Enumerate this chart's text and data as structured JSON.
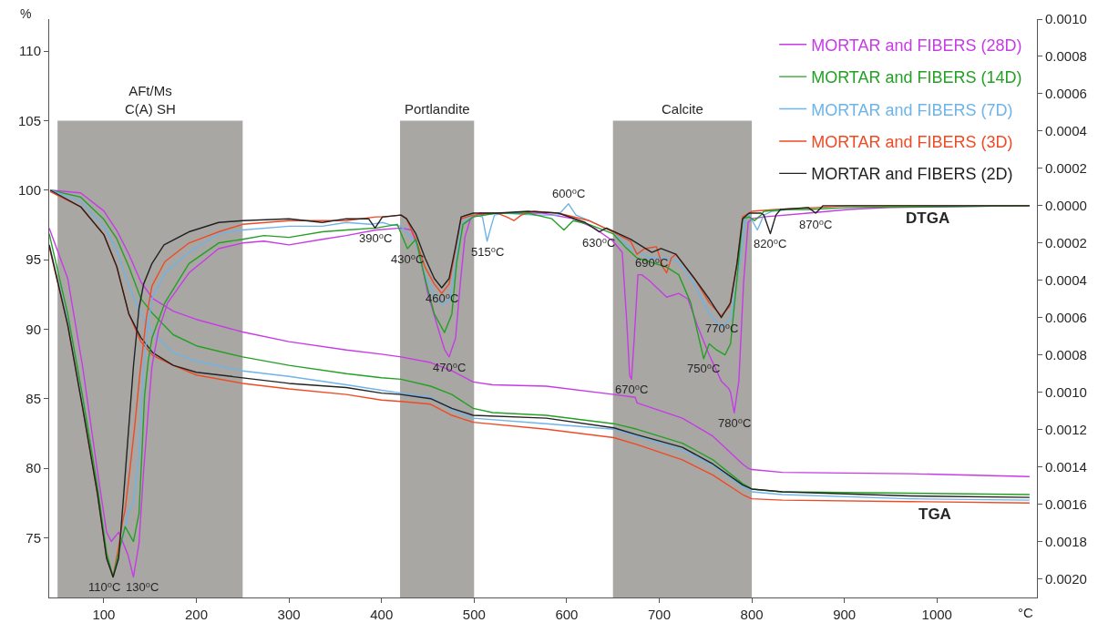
{
  "chart_data": {
    "type": "line",
    "xlabel": "°C",
    "ylabel": "%",
    "legend": "top right",
    "xlim": [
      41,
      1108
    ],
    "xticks": [
      100,
      200,
      300,
      400,
      500,
      600,
      700,
      800,
      900,
      1000
    ],
    "ylim": [
      70.7,
      112.3
    ],
    "yticks": [
      75,
      80,
      85,
      90,
      95,
      100,
      105,
      110
    ],
    "y2lim": [
      -0.0021,
      0.001
    ],
    "y2ticks": [
      {
        "value": 0.001,
        "label": "0.0010"
      },
      {
        "value": 0.0008,
        "label": "0.0008"
      },
      {
        "value": 0.0006,
        "label": "0.0006"
      },
      {
        "value": 0.0004,
        "label": "0.0004"
      },
      {
        "value": 0.0002,
        "label": "0.0002"
      },
      {
        "value": 0,
        "label": "0.0000"
      },
      {
        "value": -0.0002,
        "label": "0.0002"
      },
      {
        "value": -0.0004,
        "label": "0.0004"
      },
      {
        "value": -0.0006,
        "label": "0.0006"
      },
      {
        "value": -0.0008,
        "label": "0.0008"
      },
      {
        "value": -0.001,
        "label": "0.0010"
      },
      {
        "value": -0.0012,
        "label": "0.0012"
      },
      {
        "value": -0.0014,
        "label": "0.0014"
      },
      {
        "value": -0.0016,
        "label": "0.0016"
      },
      {
        "value": -0.0018,
        "label": "0.0018"
      },
      {
        "value": -0.002,
        "label": "0.0020"
      }
    ],
    "bands": [
      {
        "axis": "x",
        "from": 50,
        "to": 250,
        "label": "AFt/Ms\nC(A) SH",
        "color": "#a8a7a3"
      },
      {
        "axis": "x",
        "from": 420,
        "to": 500,
        "label": "Portlandite",
        "color": "#a8a7a3"
      },
      {
        "axis": "x",
        "from": 650,
        "to": 800,
        "label": "Calcite",
        "color": "#a8a7a3"
      }
    ],
    "series": [
      {
        "name": "MORTAR and FIBERS (28D)",
        "color": "#c73be6",
        "x": [
          42,
          75,
          100,
          114,
          127,
          140,
          153,
          175,
          200,
          250,
          300,
          362,
          400,
          421,
          453,
          476,
          499,
          520,
          578,
          651,
          674,
          676,
          725,
          758,
          790,
          796,
          800,
          833,
          970,
          1100
        ],
        "values": [
          100,
          99.8,
          98.5,
          97.1,
          95.4,
          93.4,
          92.2,
          91.3,
          90.7,
          89.8,
          89.1,
          88.5,
          88.2,
          88.0,
          87.6,
          87.0,
          86.2,
          86.0,
          85.9,
          85.3,
          85.1,
          84.7,
          83.6,
          82.3,
          80.3,
          80.0,
          79.9,
          79.7,
          79.6,
          79.4
        ]
      },
      {
        "name": "MORTAR and FIBERS (14D)",
        "color": "#24a024",
        "x": [
          42,
          75,
          100,
          114,
          127,
          140,
          153,
          175,
          200,
          250,
          300,
          362,
          400,
          421,
          453,
          476,
          499,
          520,
          578,
          651,
          676,
          725,
          758,
          790,
          800,
          833,
          970,
          1100
        ],
        "values": [
          100,
          99.5,
          97.9,
          96.5,
          94.5,
          92.2,
          91.1,
          89.6,
          88.8,
          88.0,
          87.4,
          86.8,
          86.5,
          86.4,
          85.9,
          85.3,
          84.3,
          84.0,
          83.8,
          83.2,
          82.8,
          81.8,
          80.6,
          78.9,
          78.5,
          78.3,
          78.2,
          78.1
        ]
      },
      {
        "name": "MORTAR and FIBERS (7D)",
        "color": "#6db4e8",
        "x": [
          42,
          75,
          100,
          114,
          127,
          140,
          153,
          175,
          200,
          250,
          300,
          362,
          400,
          421,
          453,
          476,
          499,
          578,
          651,
          676,
          725,
          758,
          790,
          800,
          833,
          970,
          1100
        ],
        "values": [
          100,
          99.2,
          97.4,
          95.7,
          93.1,
          91.1,
          89.7,
          88.3,
          87.7,
          87.0,
          86.6,
          86.0,
          85.6,
          85.4,
          85.1,
          84.2,
          83.6,
          83.2,
          82.8,
          82.3,
          81.3,
          80.2,
          78.7,
          78.3,
          78.1,
          77.8,
          77.7
        ]
      },
      {
        "name": "MORTAR and FIBERS (3D)",
        "color": "#f04a24",
        "x": [
          42,
          75,
          100,
          114,
          127,
          140,
          153,
          175,
          200,
          250,
          300,
          362,
          400,
          421,
          453,
          476,
          499,
          578,
          651,
          676,
          725,
          758,
          790,
          800,
          833,
          970,
          1100
        ],
        "values": [
          99.9,
          98.8,
          96.8,
          94.5,
          91.1,
          89.1,
          88.1,
          87.4,
          86.7,
          86.1,
          85.7,
          85.3,
          84.9,
          84.8,
          84.6,
          83.8,
          83.3,
          82.8,
          82.2,
          81.7,
          80.6,
          79.5,
          78.1,
          77.8,
          77.7,
          77.6,
          77.5
        ]
      },
      {
        "name": "MORTAR and FIBERS (2D)",
        "color": "#222222",
        "x": [
          42,
          75,
          100,
          114,
          127,
          140,
          153,
          175,
          200,
          250,
          300,
          362,
          400,
          421,
          453,
          476,
          499,
          578,
          651,
          676,
          725,
          758,
          790,
          800,
          833,
          970,
          1100
        ],
        "values": [
          100,
          98.8,
          96.8,
          94.5,
          91.1,
          89.4,
          88.3,
          87.4,
          86.9,
          86.5,
          86.1,
          85.8,
          85.4,
          85.3,
          85.0,
          84.3,
          83.8,
          83.6,
          82.9,
          82.4,
          81.5,
          80.3,
          78.8,
          78.5,
          78.3,
          78.0,
          77.9
        ]
      },
      {
        "color": "#c73be6",
        "axis": "y2",
        "x": [
          41,
          61,
          77,
          93,
          103,
          108,
          116,
          126,
          132,
          138,
          143,
          148,
          152,
          159,
          169,
          192,
          224,
          250,
          273,
          300,
          336,
          362,
          394,
          421,
          432,
          440,
          450,
          460,
          468,
          473,
          480,
          485,
          490,
          496,
          506,
          542,
          574,
          607,
          630,
          650,
          660,
          665,
          668,
          670,
          673,
          677,
          681,
          689,
          708,
          721,
          731,
          741,
          754,
          767,
          775,
          777,
          781,
          786,
          791,
          796,
          800,
          813,
          861,
          904,
          948,
          1100
        ],
        "values": [
          -0.00012,
          -0.00039,
          -0.00086,
          -0.00142,
          -0.00175,
          -0.0018,
          -0.00175,
          -0.00187,
          -0.00199,
          -0.00181,
          -0.00142,
          -0.0011,
          -0.00086,
          -0.00067,
          -0.00052,
          -0.00036,
          -0.00023,
          -0.0002,
          -0.00019,
          -0.00021,
          -0.00018,
          -0.00016,
          -0.00013,
          -0.00012,
          -0.00013,
          -0.00023,
          -0.00047,
          -0.00064,
          -0.00077,
          -0.00081,
          -0.00071,
          -0.00042,
          -0.00017,
          -7e-05,
          -4e-05,
          -4e-05,
          -4e-05,
          -7e-05,
          -0.00012,
          -0.00019,
          -0.00025,
          -0.00063,
          -0.00091,
          -0.00093,
          -0.00071,
          -0.00037,
          -0.00037,
          -0.0004,
          -0.00049,
          -0.00047,
          -0.0005,
          -0.00064,
          -0.0008,
          -0.00094,
          -0.00098,
          -0.001,
          -0.00111,
          -0.00094,
          -0.00042,
          -9e-05,
          -7e-05,
          -6e-05,
          -4e-05,
          -2e-05,
          -1e-05,
          0
        ]
      },
      {
        "color": "#6db4e8",
        "axis": "y2",
        "x": [
          41,
          61,
          77,
          93,
          103,
          110,
          116,
          123,
          126,
          132,
          138,
          143,
          148,
          152,
          166,
          192,
          224,
          250,
          300,
          336,
          362,
          388,
          401,
          408,
          421,
          437,
          447,
          457,
          466,
          474,
          480,
          486,
          499,
          509,
          514,
          519,
          522,
          532,
          565,
          591,
          602,
          610,
          624,
          650,
          669,
          689,
          705,
          721,
          738,
          754,
          767,
          777,
          787,
          793,
          796,
          806,
          813,
          822,
          861
        ],
        "values": [
          -0.00021,
          -0.00062,
          -0.00106,
          -0.00152,
          -0.00188,
          -0.00199,
          -0.00185,
          -0.00173,
          -0.00165,
          -0.00159,
          -0.00134,
          -0.00086,
          -0.00063,
          -0.0005,
          -0.00036,
          -0.00025,
          -0.00015,
          -0.00013,
          -0.00011,
          -0.00011,
          -9e-05,
          -0.0001,
          -9e-05,
          -0.0001,
          -0.00011,
          -0.0002,
          -0.00037,
          -0.00048,
          -0.00053,
          -0.0005,
          -0.00031,
          -0.0001,
          -5e-05,
          -6e-05,
          -0.00019,
          -0.0001,
          -5e-05,
          -4e-05,
          -5e-05,
          -5e-05,
          1e-05,
          -5e-05,
          -8e-05,
          -0.00014,
          -0.00023,
          -0.00028,
          -0.00028,
          -0.0003,
          -0.00042,
          -0.00058,
          -0.00065,
          -0.00061,
          -0.00031,
          -7e-05,
          -4e-05,
          -0.00013,
          -5e-05,
          -3e-05,
          -1e-05
        ]
      },
      {
        "color": "#f04a24",
        "axis": "y2",
        "x": [
          41,
          61,
          77,
          93,
          103,
          110,
          116,
          120,
          123,
          128,
          133,
          139,
          146,
          152,
          166,
          192,
          224,
          250,
          300,
          336,
          362,
          394,
          404,
          421,
          427,
          437,
          447,
          457,
          465,
          473,
          480,
          486,
          499,
          525,
          535,
          543,
          551,
          565,
          591,
          624,
          650,
          669,
          676,
          684,
          697,
          704,
          708,
          713,
          718,
          738,
          754,
          767,
          776,
          784,
          790,
          800,
          826,
          870,
          904,
          1100
        ],
        "values": [
          -0.00022,
          -0.00064,
          -0.00108,
          -0.00154,
          -0.00189,
          -0.00199,
          -0.00183,
          -0.0017,
          -0.00163,
          -0.00142,
          -0.0012,
          -0.0009,
          -0.0006,
          -0.00043,
          -0.0003,
          -0.0002,
          -0.00014,
          -0.0001,
          -8e-05,
          -8e-05,
          -8e-05,
          -6e-05,
          -6e-05,
          -5e-05,
          -7e-05,
          -0.00018,
          -0.00033,
          -0.00042,
          -0.00047,
          -0.00042,
          -0.00023,
          -7e-05,
          -5e-05,
          -4e-05,
          -6e-05,
          -8e-05,
          -5e-05,
          -3e-05,
          -4e-05,
          -8e-05,
          -0.00014,
          -0.00019,
          -0.00026,
          -0.00023,
          -0.00022,
          -0.00033,
          -0.00036,
          -0.00028,
          -0.00026,
          -0.00039,
          -0.00052,
          -0.00059,
          -0.00054,
          -0.00031,
          -6e-05,
          -3e-05,
          -2e-05,
          -1e-05,
          0,
          0
        ]
      },
      {
        "color": "#24a024",
        "axis": "y2",
        "x": [
          41,
          61,
          77,
          93,
          103,
          110,
          116,
          123,
          132,
          138,
          141,
          144,
          148,
          152,
          166,
          192,
          224,
          250,
          273,
          300,
          336,
          362,
          394,
          417,
          422,
          428,
          437,
          447,
          457,
          468,
          476,
          481,
          488,
          499,
          525,
          558,
          584,
          597,
          607,
          624,
          650,
          663,
          676,
          689,
          708,
          721,
          734,
          741,
          748,
          754,
          761,
          771,
          777,
          784,
          790,
          797,
          803,
          810,
          813,
          835,
          861,
          904,
          1100
        ],
        "values": [
          -0.00015,
          -0.00058,
          -0.00102,
          -0.0015,
          -0.00186,
          -0.00199,
          -0.00186,
          -0.00172,
          -0.0018,
          -0.00165,
          -0.00134,
          -0.00102,
          -0.00083,
          -0.00071,
          -0.00052,
          -0.00031,
          -0.0002,
          -0.00018,
          -0.00016,
          -0.00017,
          -0.00014,
          -0.00013,
          -0.00012,
          -0.0001,
          -0.00016,
          -0.00023,
          -0.00018,
          -0.00039,
          -0.00058,
          -0.00068,
          -0.00058,
          -0.00031,
          -0.0001,
          -6e-05,
          -4e-05,
          -4e-05,
          -7e-05,
          -0.00013,
          -8e-05,
          -0.0001,
          -0.00015,
          -0.00022,
          -0.00028,
          -0.0003,
          -0.00033,
          -0.00037,
          -0.00052,
          -0.00067,
          -0.00082,
          -0.00074,
          -0.00077,
          -0.0008,
          -0.00074,
          -0.00039,
          -7e-05,
          -6e-05,
          -8e-05,
          -5e-05,
          -3e-05,
          -2e-05,
          -2e-05,
          -1e-05,
          0
        ]
      },
      {
        "color": "#222222",
        "axis": "y2",
        "x": [
          41,
          61,
          77,
          93,
          103,
          110,
          116,
          121,
          126,
          132,
          138,
          143,
          152,
          165,
          192,
          224,
          250,
          300,
          336,
          362,
          386,
          393,
          401,
          421,
          427,
          437,
          447,
          457,
          465,
          473,
          480,
          486,
          499,
          525,
          558,
          591,
          620,
          635,
          643,
          669,
          692,
          702,
          718,
          738,
          754,
          767,
          777,
          784,
          790,
          797,
          810,
          813,
          820,
          826,
          831,
          861,
          869,
          877,
          948,
          1100
        ],
        "values": [
          -0.00021,
          -0.00064,
          -0.00108,
          -0.00154,
          -0.00189,
          -0.00199,
          -0.00189,
          -0.00158,
          -0.00125,
          -0.00086,
          -0.00055,
          -0.00042,
          -0.00031,
          -0.00021,
          -0.00014,
          -9e-05,
          -8e-05,
          -7e-05,
          -9e-05,
          -7e-05,
          -7e-05,
          -0.00012,
          -6e-05,
          -5e-05,
          -7e-05,
          -0.00015,
          -0.00028,
          -0.00039,
          -0.00044,
          -0.00039,
          -0.00022,
          -6e-05,
          -4e-05,
          -4e-05,
          -3e-05,
          -4e-05,
          -9e-05,
          -0.00014,
          -0.00012,
          -0.00018,
          -0.00025,
          -0.00023,
          -0.00026,
          -0.00039,
          -0.0005,
          -0.0006,
          -0.00052,
          -0.00031,
          -7e-05,
          -4e-05,
          -4e-05,
          -5e-05,
          -0.00015,
          -5e-05,
          -2e-05,
          -1e-05,
          -4e-05,
          0,
          0,
          0
        ]
      }
    ],
    "annotations": [
      {
        "text": "110⁰C",
        "x": 110,
        "y": 72.2
      },
      {
        "text": "130⁰C",
        "x": 132,
        "y": 72.2
      },
      {
        "text": "390⁰C",
        "x": 393,
        "y": 97.3
      },
      {
        "text": "430⁰C",
        "x": 428,
        "y": 95.8
      },
      {
        "text": "460⁰C",
        "x": 465,
        "y": 93.0
      },
      {
        "text": "470⁰C",
        "x": 473,
        "y": 88.0
      },
      {
        "text": "515⁰C",
        "x": 514,
        "y": 96.3
      },
      {
        "text": "600⁰C",
        "x": 602,
        "y": 99.0
      },
      {
        "text": "630⁰C",
        "x": 635,
        "y": 97.0
      },
      {
        "text": "690⁰C",
        "x": 692,
        "y": 95.5
      },
      {
        "text": "670⁰C",
        "x": 670,
        "y": 86.4
      },
      {
        "text": "750⁰C",
        "x": 748,
        "y": 87.9
      },
      {
        "text": "770⁰C",
        "x": 767,
        "y": 90.8
      },
      {
        "text": "780⁰C",
        "x": 781,
        "y": 84.0
      },
      {
        "text": "820⁰C",
        "x": 820,
        "y": 96.9
      },
      {
        "text": "870⁰C",
        "x": 869,
        "y": 98.3
      },
      {
        "text": "DTGA",
        "x": 990,
        "y": 98.9
      },
      {
        "text": "TGA",
        "x": 998,
        "y": 77.6
      }
    ]
  }
}
